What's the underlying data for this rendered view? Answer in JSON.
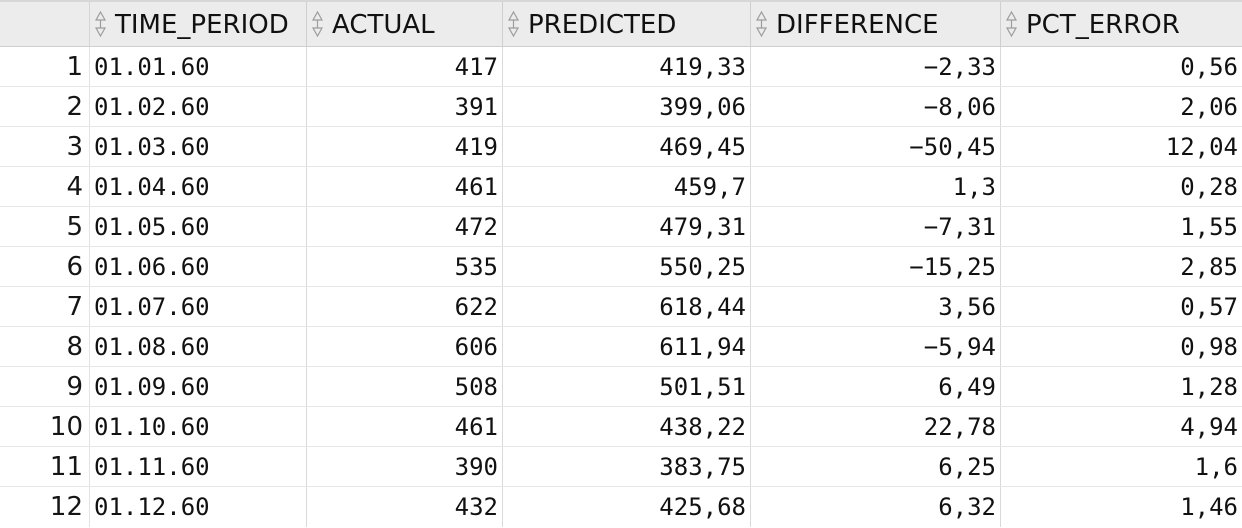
{
  "table": {
    "columns": [
      {
        "label": "TIME_PERIOD",
        "icon": "sort-icon"
      },
      {
        "label": "ACTUAL",
        "icon": "sort-icon"
      },
      {
        "label": "PREDICTED",
        "icon": "sort-icon"
      },
      {
        "label": "DIFFERENCE",
        "icon": "sort-icon"
      },
      {
        "label": "PCT_ERROR",
        "icon": "sort-icon"
      }
    ],
    "rows": [
      {
        "num": "1",
        "time_period": "01.01.60",
        "actual": "417",
        "predicted": "419,33",
        "difference": "−2,33",
        "pct_error": "0,56"
      },
      {
        "num": "2",
        "time_period": "01.02.60",
        "actual": "391",
        "predicted": "399,06",
        "difference": "−8,06",
        "pct_error": "2,06"
      },
      {
        "num": "3",
        "time_period": "01.03.60",
        "actual": "419",
        "predicted": "469,45",
        "difference": "−50,45",
        "pct_error": "12,04"
      },
      {
        "num": "4",
        "time_period": "01.04.60",
        "actual": "461",
        "predicted": "459,7",
        "difference": "1,3",
        "pct_error": "0,28"
      },
      {
        "num": "5",
        "time_period": "01.05.60",
        "actual": "472",
        "predicted": "479,31",
        "difference": "−7,31",
        "pct_error": "1,55"
      },
      {
        "num": "6",
        "time_period": "01.06.60",
        "actual": "535",
        "predicted": "550,25",
        "difference": "−15,25",
        "pct_error": "2,85"
      },
      {
        "num": "7",
        "time_period": "01.07.60",
        "actual": "622",
        "predicted": "618,44",
        "difference": "3,56",
        "pct_error": "0,57"
      },
      {
        "num": "8",
        "time_period": "01.08.60",
        "actual": "606",
        "predicted": "611,94",
        "difference": "−5,94",
        "pct_error": "0,98"
      },
      {
        "num": "9",
        "time_period": "01.09.60",
        "actual": "508",
        "predicted": "501,51",
        "difference": "6,49",
        "pct_error": "1,28"
      },
      {
        "num": "10",
        "time_period": "01.10.60",
        "actual": "461",
        "predicted": "438,22",
        "difference": "22,78",
        "pct_error": "4,94"
      },
      {
        "num": "11",
        "time_period": "01.11.60",
        "actual": "390",
        "predicted": "383,75",
        "difference": "6,25",
        "pct_error": "1,6"
      },
      {
        "num": "12",
        "time_period": "01.12.60",
        "actual": "432",
        "predicted": "425,68",
        "difference": "6,32",
        "pct_error": "1,46"
      }
    ]
  },
  "colors": {
    "header_background": "#ececec",
    "grid_line": "#d9d9d9",
    "row_background": "#ffffff",
    "text": "#111111"
  }
}
